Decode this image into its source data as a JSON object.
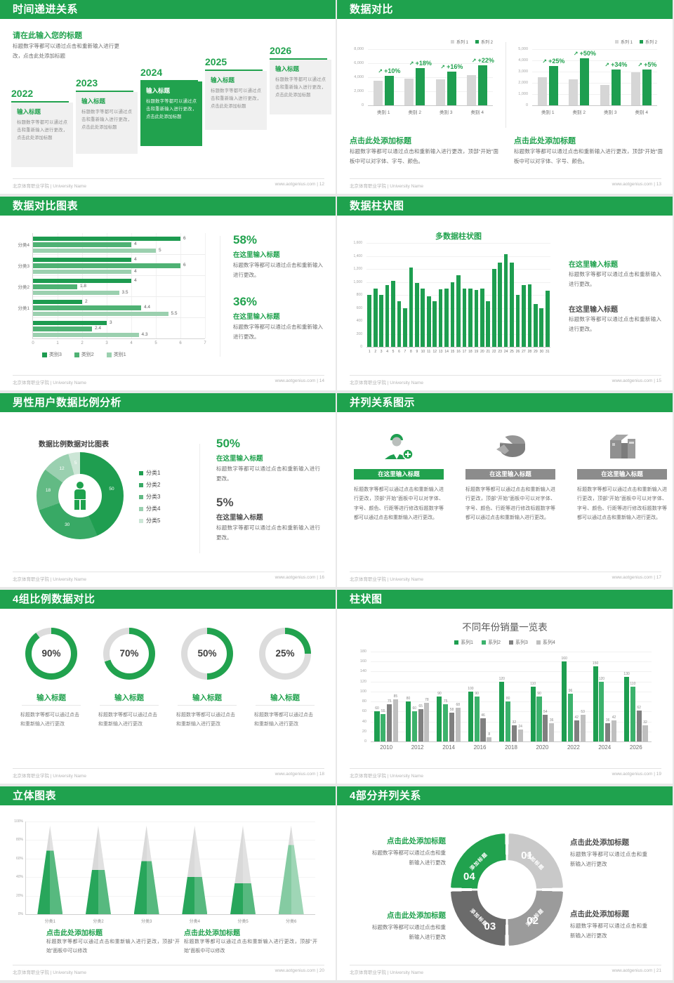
{
  "site": {
    "footer_left": "北京体育职业学院 | University Name",
    "footer_site": "www.aotgenius.com"
  },
  "icons": {
    "growth_arrow": "↗"
  },
  "colors": {
    "accent_green": "#1FA24E",
    "bar_green": "#1E9E50",
    "bar_gray": "#D6D6D6",
    "text_gray": "#6E6E6E"
  },
  "slides": [
    {
      "title": "时间递进关系",
      "page": "12",
      "footer_right": "www.aotgenius.com | 12",
      "heading": "请在此输入您的标题",
      "sub": "标题数字等都可以通过点击和重新输入进行更改，点击此处添加标题",
      "years": [
        "2022",
        "2023",
        "2024",
        "2025",
        "2026"
      ],
      "step_title": "输入标题",
      "step_body": "标题数字等都可以通过点击和重新输入进行更改，点击此处添加标题"
    },
    {
      "title": "数据对比",
      "page": "13",
      "footer_right": "www.aotgenius.com | 13",
      "block_heading": "点击此处添加标题",
      "block_body": "标题数字等都可以通过点击和重新输入进行更改，顶部“开始”面板中可以对字体、字号、颜色。"
    },
    {
      "title": "数据对比图表",
      "page": "14",
      "footer_right": "www.aotgenius.com | 14",
      "stats": [
        {
          "pct": "58%",
          "heading": "在这里输入标题",
          "body": "标题数字等都可以通过点击和重新输入进行更改。"
        },
        {
          "pct": "36%",
          "heading": "在这里输入标题",
          "body": "标题数字等都可以通过点击和重新输入进行更改。"
        }
      ]
    },
    {
      "title": "数据柱状图",
      "page": "15",
      "footer_right": "www.aotgenius.com | 15",
      "blocks": [
        {
          "heading": "在这里输入标题",
          "body": "标题数字等都可以通过点击和重新输入进行更改。"
        },
        {
          "heading": "在这里输入标题",
          "body": "标题数字等都可以通过点击和重新输入进行更改。"
        }
      ]
    },
    {
      "title": "男性用户数据比例分析",
      "page": "16",
      "footer_right": "www.aotgenius.com | 16",
      "stats": [
        {
          "pct": "50%",
          "heading": "在这里输入标题",
          "body": "标题数字等都可以通过点击和重新输入进行更改。"
        },
        {
          "pct": "5%",
          "heading": "在这里输入标题",
          "body": "标题数字等都可以通过点击和重新输入进行更改。"
        }
      ]
    },
    {
      "title": "并列关系图示",
      "page": "17",
      "footer_right": "www.aotgenius.com | 17",
      "col_title": "在这里输入标题",
      "col_body": "标题数字等都可以通过点击和重新输入进行更改，顶部“开始”面板中可以对字体、字号、颜色、行距等进行修改标题数字等都可以通过点击和重新输入进行更改。"
    },
    {
      "title": "4组比例数据对比",
      "page": "18",
      "footer_right": "www.aotgenius.com | 18",
      "item_title": "输入标题",
      "item_body": "标题数字等都可以通过点击和重新输入进行更改"
    },
    {
      "title": "柱状图",
      "page": "19",
      "footer_right": "www.aotgenius.com | 19"
    },
    {
      "title": "立体图表",
      "page": "20",
      "footer_right": "www.aotgenius.com | 20",
      "block_heading": "点击此处添加标题",
      "block_body": "标题数字等都可以通过点击和重新输入进行更改，顶部“开始”面板中可以修改"
    },
    {
      "title": "4部分并列关系",
      "page": "21",
      "footer_right": "www.aotgenius.com | 21",
      "block_heading": "点击此处添加标题",
      "block_body": "标题数字等都可以通过点击和重新输入进行更改"
    }
  ],
  "chart_data": [
    {
      "name": "compare_left",
      "type": "bar",
      "categories": [
        "类别 1",
        "类别 2",
        "类别 3",
        "类别 4"
      ],
      "series": [
        {
          "name": "系列 1",
          "color": "#D6D6D6",
          "values": [
            3500,
            3800,
            3700,
            4300
          ]
        },
        {
          "name": "系列 2",
          "color": "#1E9E50",
          "values": [
            4200,
            5300,
            4800,
            5700
          ]
        }
      ],
      "growth_labels": [
        "+10%",
        "+18%",
        "+16%",
        "+22%"
      ],
      "ylim": [
        0,
        8000
      ],
      "yticks": [
        "8,000",
        "6,000",
        "4,000",
        "2,000",
        "0"
      ]
    },
    {
      "name": "compare_right",
      "type": "bar",
      "categories": [
        "类别 1",
        "类别 2",
        "类别 3",
        "类别 4"
      ],
      "series": [
        {
          "name": "系列 1",
          "color": "#D6D6D6",
          "values": [
            2500,
            2300,
            1800,
            2950
          ]
        },
        {
          "name": "系列 2",
          "color": "#1E9E50",
          "values": [
            3500,
            4200,
            3200,
            3200
          ]
        }
      ],
      "growth_labels": [
        "+25%",
        "+50%",
        "+34%",
        "+5%"
      ],
      "ylim": [
        0,
        5000
      ],
      "yticks": [
        "5,000",
        "4,000",
        "3,000",
        "2,000",
        "1,000",
        "0"
      ]
    },
    {
      "name": "horizontal_compare",
      "type": "bar-horizontal",
      "series": [
        {
          "name": "类别3",
          "color": "#1D9B50"
        },
        {
          "name": "类别2",
          "color": "#4FB274"
        },
        {
          "name": "类别1",
          "color": "#9BD0AF"
        }
      ],
      "groups": [
        {
          "label": "分类4",
          "values": [
            6,
            4,
            5
          ]
        },
        {
          "label": "分类3",
          "values": [
            4,
            6,
            4
          ]
        },
        {
          "label": "分类2",
          "values": [
            4,
            1.8,
            3.5
          ]
        },
        {
          "label": "分类1",
          "values": [
            2,
            4.4,
            5.5
          ]
        },
        {
          "label": "",
          "values": [
            3,
            2.4,
            4.3
          ]
        }
      ],
      "xlim": [
        0,
        7
      ],
      "xticks": [
        0,
        1,
        2,
        3,
        4,
        5,
        6,
        7
      ]
    },
    {
      "name": "daily_bars",
      "type": "bar",
      "title": "多数据柱状图",
      "categories": [
        "1",
        "2",
        "3",
        "4",
        "5",
        "6",
        "7",
        "8",
        "9",
        "10",
        "11",
        "12",
        "13",
        "14",
        "15",
        "16",
        "17",
        "18",
        "19",
        "20",
        "21",
        "22",
        "23",
        "24",
        "25",
        "26",
        "27",
        "28",
        "29",
        "30",
        "31"
      ],
      "color": "#1E9E50",
      "values": [
        800,
        900,
        800,
        950,
        1020,
        700,
        600,
        1220,
        980,
        900,
        780,
        700,
        890,
        900,
        990,
        1100,
        900,
        900,
        880,
        900,
        700,
        1200,
        1300,
        1430,
        1300,
        800,
        950,
        960,
        660,
        600,
        870
      ],
      "ylim": [
        0,
        1600
      ],
      "yticks": [
        "1,600",
        "1,400",
        "1,200",
        "1,000",
        "800",
        "600",
        "400",
        "200",
        "0"
      ]
    },
    {
      "name": "male_ratio_donut",
      "type": "pie",
      "title": "数据比例数据对比图表",
      "labels": [
        "分类1",
        "分类2",
        "分类3",
        "分类4",
        "分类5"
      ],
      "values": [
        50,
        30,
        18,
        12,
        5
      ],
      "colors": [
        "#1F9E50",
        "#38A965",
        "#62BA84",
        "#9AD0B0",
        "#CCE6D6"
      ]
    },
    {
      "name": "progress_rings",
      "type": "progress-rings",
      "values": [
        90,
        70,
        50,
        25
      ],
      "ring_color": "#21A24E",
      "track_color": "#DCDCDC"
    },
    {
      "name": "yearly_sales",
      "type": "bar",
      "title": "不同年份销量一览表",
      "categories": [
        "2010",
        "2012",
        "2014",
        "2016",
        "2018",
        "2020",
        "2022",
        "2024",
        "2026"
      ],
      "series": [
        {
          "name": "系列1",
          "color": "#1E9E50",
          "values": [
            60,
            80,
            90,
            100,
            120,
            110,
            160,
            150,
            130
          ]
        },
        {
          "name": "系列2",
          "color": "#3CB26C",
          "values": [
            55,
            60,
            75,
            90,
            80,
            90,
            96,
            120,
            110
          ]
        },
        {
          "name": "系列3",
          "color": "#808080",
          "values": [
            75,
            65,
            58,
            46,
            32,
            54,
            42,
            36,
            62
          ]
        },
        {
          "name": "系列4",
          "color": "#BFBFBF",
          "values": [
            85,
            78,
            68,
            8,
            24,
            36,
            53,
            42,
            32
          ]
        }
      ],
      "ylim": [
        0,
        180
      ],
      "yticks": [
        "180",
        "160",
        "140",
        "120",
        "100",
        "80",
        "60",
        "40",
        "20",
        "0"
      ]
    },
    {
      "name": "cone_chart",
      "type": "cone",
      "categories": [
        "分类1",
        "分类2",
        "分类3",
        "分类4",
        "分类5",
        "分类6"
      ],
      "values": [
        72,
        50,
        60,
        42,
        35,
        78
      ],
      "yticks": [
        "100%",
        "80%",
        "60%",
        "40%",
        "20%",
        "0%"
      ]
    },
    {
      "name": "cycle_4_parts",
      "type": "cycle-4",
      "items": [
        {
          "num": "01",
          "label": "添加标题",
          "color": "#C9C9C9"
        },
        {
          "num": "02",
          "label": "添加标题",
          "color": "#9B9B9B"
        },
        {
          "num": "03",
          "label": "添加标题",
          "color": "#6B6B6B"
        },
        {
          "num": "04",
          "label": "添加标题",
          "color": "#21A24E"
        }
      ]
    }
  ]
}
